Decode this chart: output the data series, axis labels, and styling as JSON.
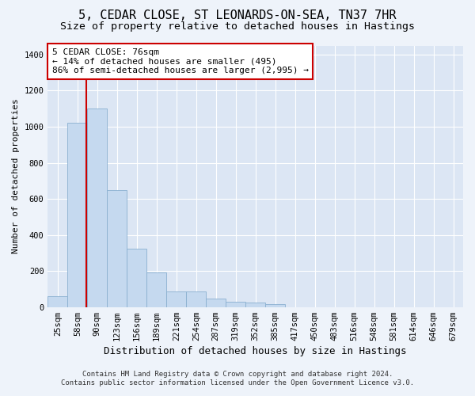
{
  "title": "5, CEDAR CLOSE, ST LEONARDS-ON-SEA, TN37 7HR",
  "subtitle": "Size of property relative to detached houses in Hastings",
  "xlabel": "Distribution of detached houses by size in Hastings",
  "ylabel": "Number of detached properties",
  "bar_color": "#c5d9ef",
  "bar_edge_color": "#8ab0d0",
  "plot_bg_color": "#dce6f4",
  "fig_bg_color": "#eef3fa",
  "grid_color": "#ffffff",
  "categories": [
    "25sqm",
    "58sqm",
    "90sqm",
    "123sqm",
    "156sqm",
    "189sqm",
    "221sqm",
    "254sqm",
    "287sqm",
    "319sqm",
    "352sqm",
    "385sqm",
    "417sqm",
    "450sqm",
    "483sqm",
    "516sqm",
    "548sqm",
    "581sqm",
    "614sqm",
    "646sqm",
    "679sqm"
  ],
  "values": [
    62,
    1020,
    1100,
    648,
    325,
    190,
    87,
    87,
    45,
    28,
    25,
    16,
    0,
    0,
    0,
    0,
    0,
    0,
    0,
    0,
    0
  ],
  "ylim": [
    0,
    1450
  ],
  "yticks": [
    0,
    200,
    400,
    600,
    800,
    1000,
    1200,
    1400
  ],
  "vline_x": 1.44,
  "annotation_text": "5 CEDAR CLOSE: 76sqm\n← 14% of detached houses are smaller (495)\n86% of semi-detached houses are larger (2,995) →",
  "annotation_box_facecolor": "#ffffff",
  "annotation_box_edgecolor": "#cc0000",
  "vline_color": "#cc0000",
  "footer_line1": "Contains HM Land Registry data © Crown copyright and database right 2024.",
  "footer_line2": "Contains public sector information licensed under the Open Government Licence v3.0.",
  "title_fontsize": 11,
  "subtitle_fontsize": 9.5,
  "xlabel_fontsize": 9,
  "ylabel_fontsize": 8,
  "tick_fontsize": 7.5,
  "annotation_fontsize": 8,
  "footer_fontsize": 6.5
}
